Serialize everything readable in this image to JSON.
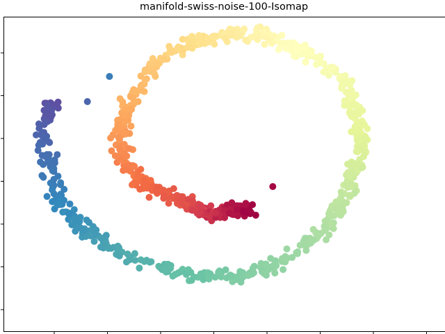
{
  "chart_data": {
    "type": "scatter",
    "title": "manifold-swiss-noise-100-Isomap",
    "xlabel": "",
    "ylabel": "",
    "x_ticks": 8,
    "y_ticks": 7,
    "tick_labels_shown": false,
    "grid": false,
    "colormap": "Spectral",
    "xlim": [
      -1.0,
      1.0
    ],
    "ylim": [
      -1.0,
      1.0
    ],
    "arms": [
      {
        "t0": 0.0,
        "t1": 0.18,
        "points": [
          [
            0.12,
            -0.24
          ],
          [
            0.05,
            -0.22
          ],
          [
            -0.02,
            -0.26
          ],
          [
            -0.08,
            -0.24
          ],
          [
            -0.14,
            -0.2
          ],
          [
            -0.2,
            -0.16
          ]
        ]
      },
      {
        "t0": 0.18,
        "t1": 0.36,
        "points": [
          [
            -0.2,
            -0.16
          ],
          [
            -0.32,
            -0.1
          ],
          [
            -0.4,
            -0.02
          ],
          [
            -0.46,
            0.1
          ],
          [
            -0.47,
            0.26
          ],
          [
            -0.44,
            0.42
          ]
        ]
      },
      {
        "t0": 0.36,
        "t1": 0.58,
        "points": [
          [
            -0.44,
            0.42
          ],
          [
            -0.36,
            0.62
          ],
          [
            -0.26,
            0.76
          ],
          [
            -0.1,
            0.86
          ],
          [
            0.08,
            0.9
          ],
          [
            0.24,
            0.86
          ]
        ]
      },
      {
        "t0": 0.58,
        "t1": 0.8,
        "points": [
          [
            0.24,
            0.86
          ],
          [
            0.42,
            0.74
          ],
          [
            0.56,
            0.54
          ],
          [
            0.62,
            0.3
          ],
          [
            0.6,
            0.05
          ],
          [
            0.54,
            -0.18
          ]
        ]
      },
      {
        "t0": 0.8,
        "t1": 1.0,
        "points": [
          [
            0.54,
            -0.18
          ],
          [
            0.42,
            -0.4
          ],
          [
            0.24,
            -0.58
          ],
          [
            0.04,
            -0.66
          ],
          [
            -0.18,
            -0.64
          ],
          [
            -0.4,
            -0.54
          ]
        ]
      },
      {
        "t0": 1.0,
        "t1": 1.2,
        "points": [
          [
            -0.4,
            -0.54
          ],
          [
            -0.6,
            -0.4
          ],
          [
            -0.74,
            -0.2
          ],
          [
            -0.8,
            0.04
          ],
          [
            -0.82,
            0.28
          ],
          [
            -0.78,
            0.46
          ]
        ]
      }
    ],
    "n_points": 1000,
    "spread": 0.05,
    "outliers": [
      [
        0.22,
        -0.08
      ],
      [
        -0.52,
        0.62
      ],
      [
        -0.62,
        0.46
      ]
    ]
  }
}
